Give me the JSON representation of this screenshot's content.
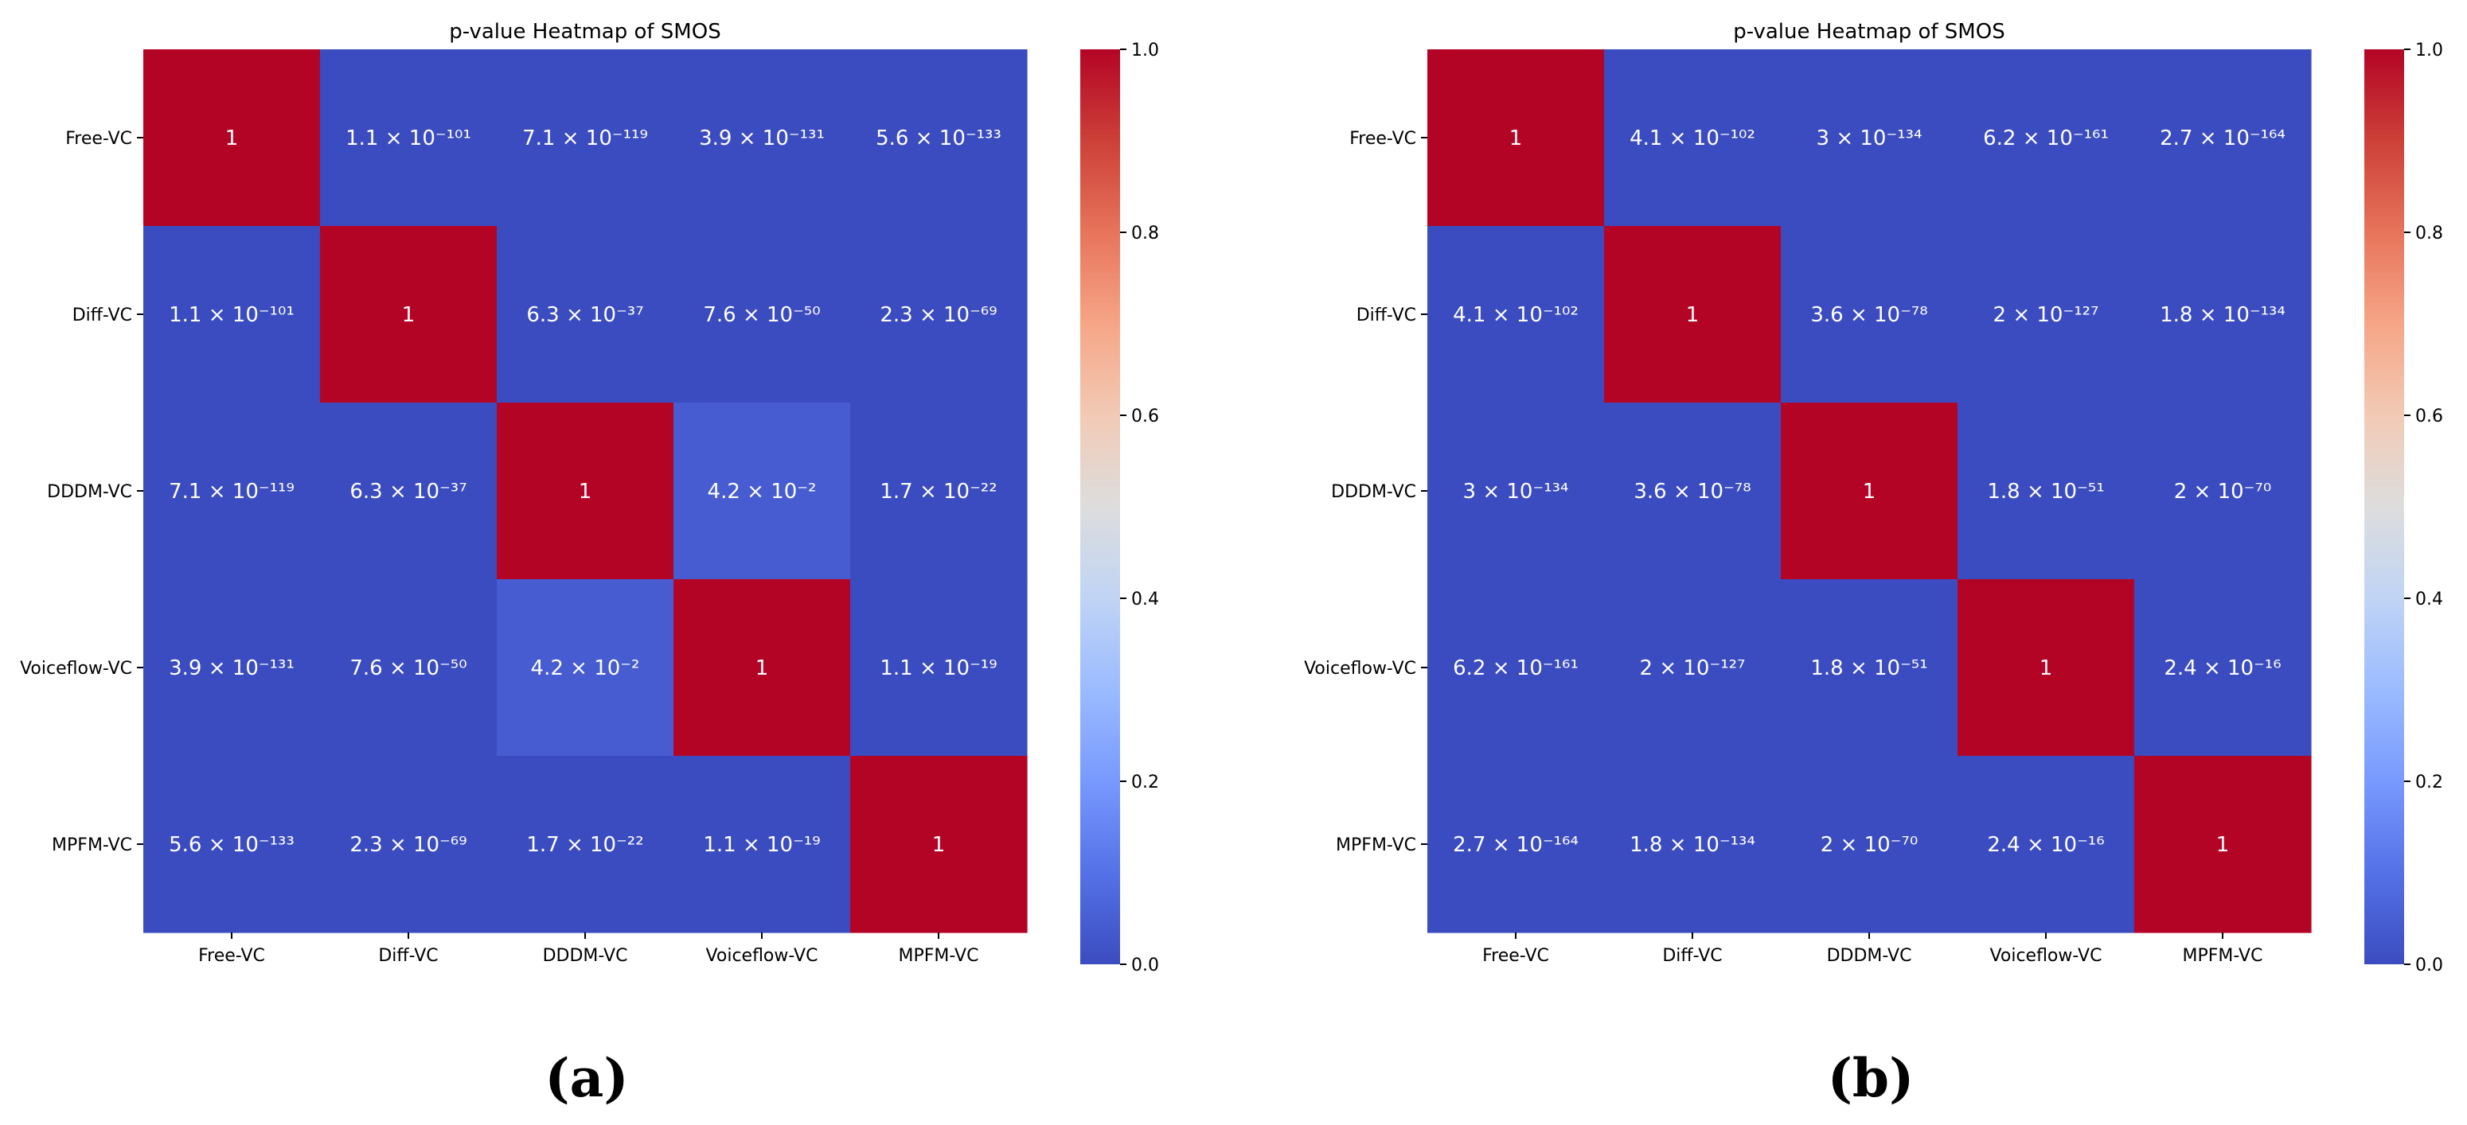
{
  "colors": {
    "min": "#3b4cc0",
    "max": "#b40426",
    "cell_text": "#ffffff",
    "axis_text": "#000000"
  },
  "colorbar_ticks": [
    "0.0",
    "0.2",
    "0.4",
    "0.6",
    "0.8",
    "1.0"
  ],
  "chart_data": [
    {
      "type": "heatmap",
      "caption": "(a)",
      "title": "p-value Heatmap of SMOS",
      "categories": [
        "Free-VC",
        "Diff-VC",
        "DDDM-VC",
        "Voiceflow-VC",
        "MPFM-VC"
      ],
      "zlim": [
        0,
        1
      ],
      "values": [
        [
          1,
          1.1e-101,
          7.1e-119,
          3.9e-131,
          5.6e-133
        ],
        [
          1.1e-101,
          1,
          6.3e-37,
          7.6e-50,
          2.3e-69
        ],
        [
          7.1e-119,
          6.3e-37,
          1,
          0.042,
          1.7e-22
        ],
        [
          3.9e-131,
          7.6e-50,
          0.042,
          1,
          1.1e-19
        ],
        [
          5.6e-133,
          2.3e-69,
          1.7e-22,
          1.1e-19,
          1
        ]
      ],
      "labels": [
        [
          "1",
          "1.1 × 10⁻¹⁰¹",
          "7.1 × 10⁻¹¹⁹",
          "3.9 × 10⁻¹³¹",
          "5.6 × 10⁻¹³³"
        ],
        [
          "1.1 × 10⁻¹⁰¹",
          "1",
          "6.3 × 10⁻³⁷",
          "7.6 × 10⁻⁵⁰",
          "2.3 × 10⁻⁶⁹"
        ],
        [
          "7.1 × 10⁻¹¹⁹",
          "6.3 × 10⁻³⁷",
          "1",
          "4.2 × 10⁻²",
          "1.7 × 10⁻²²"
        ],
        [
          "3.9 × 10⁻¹³¹",
          "7.6 × 10⁻⁵⁰",
          "4.2 × 10⁻²",
          "1",
          "1.1 × 10⁻¹⁹"
        ],
        [
          "5.6 × 10⁻¹³³",
          "2.3 × 10⁻⁶⁹",
          "1.7 × 10⁻²²",
          "1.1 × 10⁻¹⁹",
          "1"
        ]
      ]
    },
    {
      "type": "heatmap",
      "caption": "(b)",
      "title": "p-value Heatmap of SMOS",
      "categories": [
        "Free-VC",
        "Diff-VC",
        "DDDM-VC",
        "Voiceflow-VC",
        "MPFM-VC"
      ],
      "zlim": [
        0,
        1
      ],
      "values": [
        [
          1,
          4.1e-102,
          3e-134,
          6.2e-161,
          2.7e-164
        ],
        [
          4.1e-102,
          1,
          3.6e-78,
          2e-127,
          1.8e-134
        ],
        [
          3e-134,
          3.6e-78,
          1,
          1.8e-51,
          2e-70
        ],
        [
          6.2e-161,
          2e-127,
          1.8e-51,
          1,
          2.4e-16
        ],
        [
          2.7e-164,
          1.8e-134,
          2e-70,
          2.4e-16,
          1
        ]
      ],
      "labels": [
        [
          "1",
          "4.1 × 10⁻¹⁰²",
          "3 × 10⁻¹³⁴",
          "6.2 × 10⁻¹⁶¹",
          "2.7 × 10⁻¹⁶⁴"
        ],
        [
          "4.1 × 10⁻¹⁰²",
          "1",
          "3.6 × 10⁻⁷⁸",
          "2 × 10⁻¹²⁷",
          "1.8 × 10⁻¹³⁴"
        ],
        [
          "3 × 10⁻¹³⁴",
          "3.6 × 10⁻⁷⁸",
          "1",
          "1.8 × 10⁻⁵¹",
          "2 × 10⁻⁷⁰"
        ],
        [
          "6.2 × 10⁻¹⁶¹",
          "2 × 10⁻¹²⁷",
          "1.8 × 10⁻⁵¹",
          "1",
          "2.4 × 10⁻¹⁶"
        ],
        [
          "2.7 × 10⁻¹⁶⁴",
          "1.8 × 10⁻¹³⁴",
          "2 × 10⁻⁷⁰",
          "2.4 × 10⁻¹⁶",
          "1"
        ]
      ]
    }
  ]
}
